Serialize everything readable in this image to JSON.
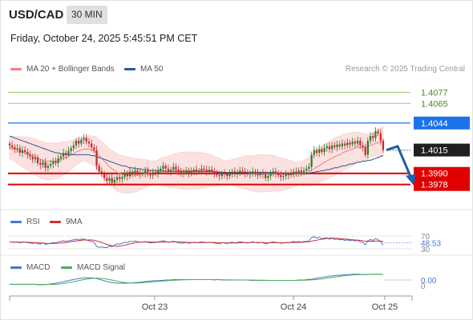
{
  "header": {
    "pair": "USD/CAD",
    "timeframe": "30 MIN",
    "datetime": "Friday, October 24, 2025 5:45:51 PM CET",
    "credit": "Research © 2025 Trading Central"
  },
  "legend": {
    "ma20": "MA 20 + Bollinger Bands",
    "ma50": "MA 50",
    "rsi": "RSI",
    "rsi_ma": "9MA",
    "macd": "MACD",
    "macd_signal": "MACD Signal"
  },
  "colors": {
    "ma20": "#f08080",
    "ma50": "#2b5797",
    "bollinger_fill": "#fcdede",
    "candle_up": "#2a7a2a",
    "candle_down": "#c62828",
    "target_lines": "#9ccc65",
    "pivot_line": "#1a73e8",
    "support_lines": "#e00000",
    "rsi": "#4a74d1",
    "rsi_ma": "#d32f2f",
    "macd": "#4a74d1",
    "macd_signal": "#4caf50",
    "arrow": "#1f5fa8"
  },
  "chart_data": [
    {
      "type": "candlestick",
      "x_tick_labels": [
        "Oct 23",
        "Oct 24",
        "Oct 25"
      ],
      "ylim": [
        1.397,
        1.4085
      ],
      "horizontal_levels": [
        {
          "value": 1.4077,
          "label": "1.4077",
          "role": "target"
        },
        {
          "value": 1.4065,
          "label": "1.4065",
          "role": "target"
        },
        {
          "value": 1.4044,
          "label": "1.4044",
          "role": "pivot"
        },
        {
          "value": 1.4015,
          "label": "1.4015",
          "role": "last-price"
        },
        {
          "value": 1.399,
          "label": "1.3990",
          "role": "support"
        },
        {
          "value": 1.3978,
          "label": "1.3978",
          "role": "support"
        }
      ],
      "close": [
        1.402,
        1.4018,
        1.4016,
        1.4017,
        1.4012,
        1.4015,
        1.4013,
        1.401,
        1.4008,
        1.4005,
        1.4007,
        1.4001,
        1.3999,
        1.4002,
        1.3996,
        1.3998,
        1.4,
        1.4003,
        1.4001,
        1.4006,
        1.4008,
        1.4012,
        1.401,
        1.4014,
        1.4017,
        1.402,
        1.4025,
        1.4022,
        1.4026,
        1.4028,
        1.4024,
        1.4022,
        1.4018,
        1.4015,
        1.3998,
        1.3992,
        1.399,
        1.3985,
        1.3982,
        1.3985,
        1.398,
        1.3983,
        1.3986,
        1.3984,
        1.3986,
        1.399,
        1.3987,
        1.3992,
        1.399,
        1.3993,
        1.3991,
        1.3989,
        1.399,
        1.3993,
        1.399,
        1.3988,
        1.3991,
        1.399,
        1.3993,
        1.3995,
        1.3998,
        1.3995,
        1.3992,
        1.3994,
        1.3997,
        1.3994,
        1.3992,
        1.399,
        1.3991,
        1.3993,
        1.399,
        1.3992,
        1.3994,
        1.3992,
        1.3993,
        1.3995,
        1.3994,
        1.3992,
        1.3994,
        1.3992,
        1.399,
        1.3988,
        1.3987,
        1.399,
        1.3989,
        1.3987,
        1.399,
        1.3992,
        1.3989,
        1.3991,
        1.3993,
        1.3992,
        1.399,
        1.3989,
        1.399,
        1.3992,
        1.399,
        1.3988,
        1.399,
        1.3989,
        1.3985,
        1.3987,
        1.399,
        1.3992,
        1.399,
        1.3988,
        1.3986,
        1.3987,
        1.3989,
        1.3988,
        1.399,
        1.3992,
        1.399,
        1.3993,
        1.3991,
        1.3993,
        1.3995,
        1.3997,
        1.401,
        1.4015,
        1.4012,
        1.4016,
        1.4013,
        1.4017,
        1.4019,
        1.4016,
        1.402,
        1.4018,
        1.4021,
        1.4019,
        1.4022,
        1.402,
        1.4023,
        1.4021,
        1.4024,
        1.4022,
        1.4025,
        1.402,
        1.4018,
        1.401,
        1.4025,
        1.403,
        1.4028,
        1.4035,
        1.4033,
        1.4025,
        1.4015
      ],
      "ma20": [
        1.4018,
        1.4017,
        1.4016,
        1.4015,
        1.4014,
        1.4013,
        1.4012,
        1.4011,
        1.401,
        1.4009,
        1.4008,
        1.4006,
        1.4005,
        1.4004,
        1.4003,
        1.4003,
        1.4003,
        1.4003,
        1.4003,
        1.4004,
        1.4005,
        1.4006,
        1.4007,
        1.4008,
        1.401,
        1.4011,
        1.4013,
        1.4014,
        1.4015,
        1.4016,
        1.4016,
        1.4016,
        1.4015,
        1.4014,
        1.4012,
        1.4009,
        1.4006,
        1.4003,
        1.4,
        1.3997,
        1.3995,
        1.3993,
        1.3991,
        1.399,
        1.3989,
        1.3989,
        1.3988,
        1.3988,
        1.3988,
        1.3988,
        1.3988,
        1.3989,
        1.3989,
        1.399,
        1.399,
        1.399,
        1.3991,
        1.3991,
        1.3991,
        1.3992,
        1.3992,
        1.3992,
        1.3992,
        1.3992,
        1.3993,
        1.3993,
        1.3993,
        1.3993,
        1.3993,
        1.3993,
        1.3993,
        1.3993,
        1.3993,
        1.3993,
        1.3993,
        1.3993,
        1.3993,
        1.3993,
        1.3993,
        1.3993,
        1.3992,
        1.3992,
        1.3992,
        1.3991,
        1.3991,
        1.3991,
        1.3991,
        1.3991,
        1.3991,
        1.3991,
        1.3991,
        1.3991,
        1.3991,
        1.3991,
        1.399,
        1.399,
        1.399,
        1.399,
        1.399,
        1.399,
        1.399,
        1.399,
        1.399,
        1.399,
        1.399,
        1.3989,
        1.3989,
        1.3989,
        1.3989,
        1.3989,
        1.3989,
        1.3989,
        1.3989,
        1.399,
        1.399,
        1.399,
        1.3991,
        1.3992,
        1.3993,
        1.3995,
        1.3997,
        1.3998,
        1.4,
        1.4002,
        1.4003,
        1.4005,
        1.4006,
        1.4008,
        1.4009,
        1.401,
        1.4012,
        1.4013,
        1.4014,
        1.4015,
        1.4016,
        1.4017,
        1.4018,
        1.4018,
        1.4018,
        1.4018,
        1.4019,
        1.402,
        1.4021,
        1.4022,
        1.4023,
        1.4024,
        1.4024
      ],
      "ma50": [
        1.403,
        1.4029,
        1.4028,
        1.4027,
        1.4026,
        1.4025,
        1.4024,
        1.4023,
        1.4022,
        1.4021,
        1.402,
        1.4019,
        1.4018,
        1.4017,
        1.4016,
        1.4015,
        1.4014,
        1.4013,
        1.4012,
        1.4012,
        1.4011,
        1.4011,
        1.401,
        1.401,
        1.401,
        1.401,
        1.401,
        1.401,
        1.401,
        1.401,
        1.401,
        1.401,
        1.4009,
        1.4009,
        1.4008,
        1.4007,
        1.4006,
        1.4005,
        1.4004,
        1.4003,
        1.4002,
        1.4001,
        1.4,
        1.3999,
        1.3998,
        1.3998,
        1.3997,
        1.3996,
        1.3996,
        1.3995,
        1.3995,
        1.3995,
        1.3994,
        1.3994,
        1.3994,
        1.3993,
        1.3993,
        1.3993,
        1.3993,
        1.3993,
        1.3993,
        1.3992,
        1.3992,
        1.3992,
        1.3992,
        1.3992,
        1.3992,
        1.3992,
        1.3992,
        1.3992,
        1.3992,
        1.3992,
        1.3992,
        1.3992,
        1.3992,
        1.3992,
        1.3992,
        1.3992,
        1.3992,
        1.3992,
        1.3992,
        1.3991,
        1.3991,
        1.3991,
        1.3991,
        1.3991,
        1.3991,
        1.3991,
        1.3991,
        1.3991,
        1.3991,
        1.3991,
        1.3991,
        1.3991,
        1.3991,
        1.3991,
        1.3991,
        1.3991,
        1.3991,
        1.3991,
        1.3991,
        1.3991,
        1.3991,
        1.3991,
        1.3991,
        1.399,
        1.399,
        1.399,
        1.399,
        1.399,
        1.399,
        1.399,
        1.399,
        1.399,
        1.399,
        1.399,
        1.399,
        1.399,
        1.3991,
        1.3991,
        1.3992,
        1.3992,
        1.3993,
        1.3993,
        1.3994,
        1.3994,
        1.3995,
        1.3996,
        1.3996,
        1.3997,
        1.3998,
        1.3998,
        1.3999,
        1.4,
        1.4,
        1.4001,
        1.4002,
        1.4002,
        1.4003,
        1.4003,
        1.4004,
        1.4004,
        1.4005,
        1.4006,
        1.4007,
        1.4008,
        1.4009
      ]
    },
    {
      "type": "line",
      "name": "RSI",
      "ylim": [
        30,
        70
      ],
      "y_tick_labels": [
        "70",
        "30"
      ],
      "last_value_label": "48.53"
    },
    {
      "type": "line",
      "name": "MACD",
      "y_tick_labels": [
        "0"
      ],
      "last_value_label": "0.00"
    }
  ]
}
